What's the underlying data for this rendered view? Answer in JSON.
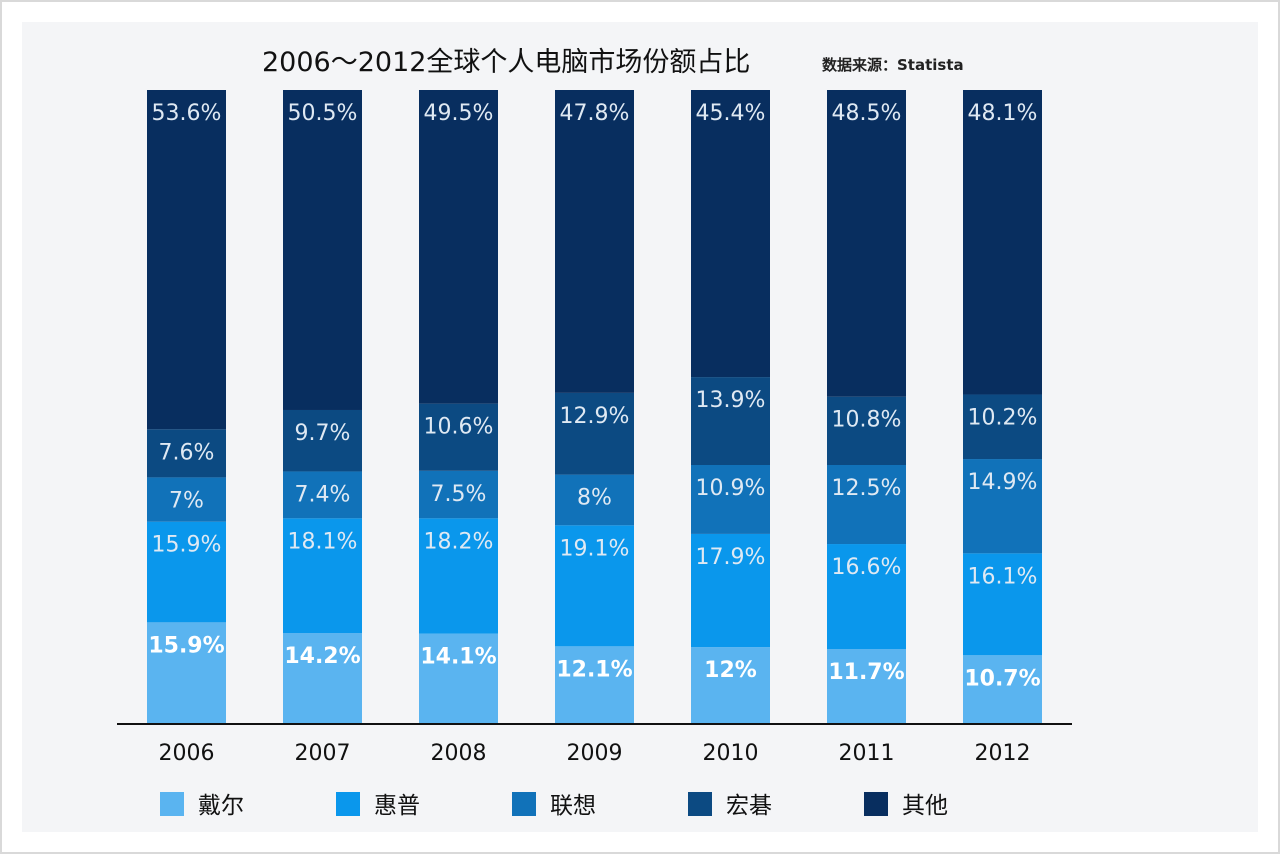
{
  "chart_data": {
    "type": "bar",
    "stacked": true,
    "title": "2006～2012全球个人电脑市场份额占比",
    "source": "数据来源：Statista",
    "categories": [
      "2006",
      "2007",
      "2008",
      "2009",
      "2010",
      "2011",
      "2012"
    ],
    "series": [
      {
        "name": "戴尔",
        "color": "#5ab4f0",
        "values": [
          15.9,
          14.2,
          14.1,
          12.1,
          12,
          11.7,
          10.7
        ],
        "labels": [
          "15.9%",
          "14.2%",
          "14.1%",
          "12.1%",
          "12%",
          "11.7%",
          "10.7%"
        ]
      },
      {
        "name": "惠普",
        "color": "#0a97ec",
        "values": [
          15.9,
          18.1,
          18.2,
          19.1,
          17.9,
          16.6,
          16.1
        ],
        "labels": [
          "15.9%",
          "18.1%",
          "18.2%",
          "19.1%",
          "17.9%",
          "16.6%",
          "16.1%"
        ]
      },
      {
        "name": "联想",
        "color": "#1172b9",
        "values": [
          7,
          7.4,
          7.5,
          8,
          10.9,
          12.5,
          14.9
        ],
        "labels": [
          "7%",
          "7.4%",
          "7.5%",
          "8%",
          "10.9%",
          "12.5%",
          "14.9%"
        ]
      },
      {
        "name": "宏碁",
        "color": "#0c4a82",
        "values": [
          7.6,
          9.7,
          10.6,
          12.9,
          13.9,
          10.8,
          10.2
        ],
        "labels": [
          "7.6%",
          "9.7%",
          "10.6%",
          "12.9%",
          "13.9%",
          "10.8%",
          "10.2%"
        ]
      },
      {
        "name": "其他",
        "color": "#082e5f",
        "values": [
          53.6,
          50.5,
          49.5,
          47.8,
          45.4,
          48.5,
          48.1
        ],
        "labels": [
          "53.6%",
          "50.5%",
          "49.5%",
          "47.8%",
          "45.4%",
          "48.5%",
          "48.1%"
        ]
      }
    ],
    "ylim": [
      0,
      100
    ],
    "grid": false,
    "legend": "bottom"
  }
}
